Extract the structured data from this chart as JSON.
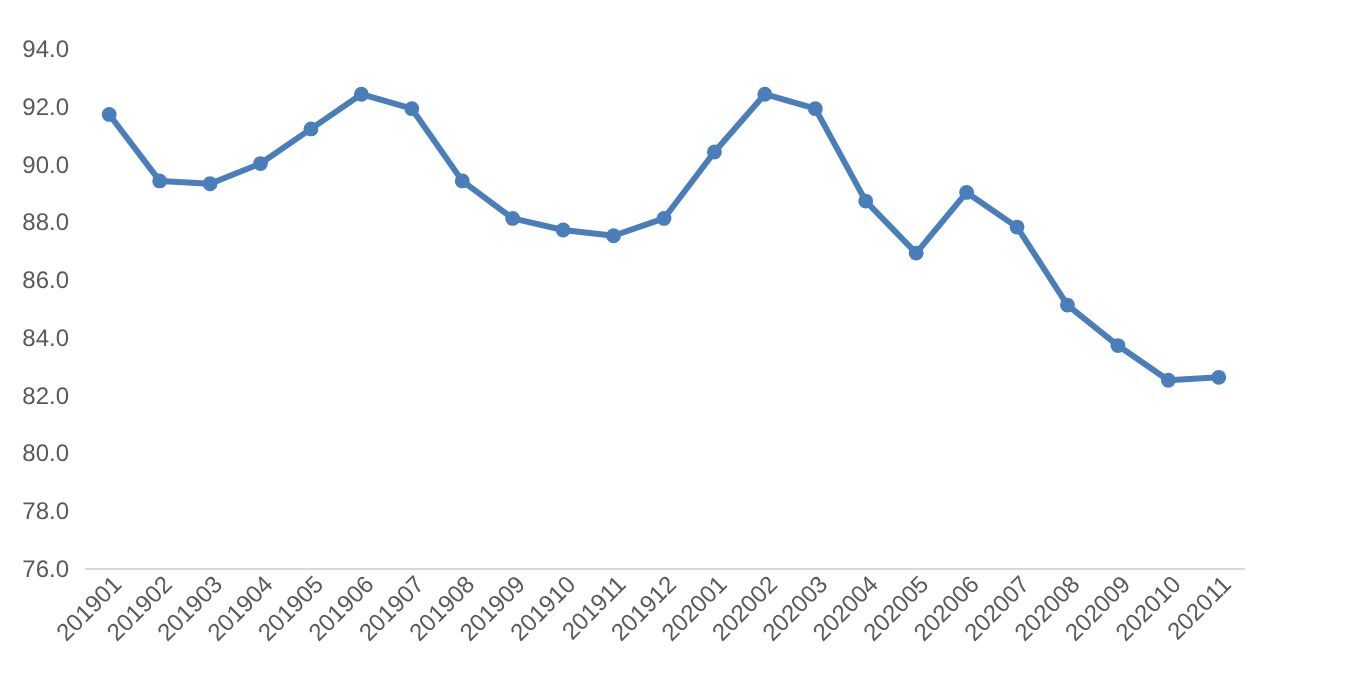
{
  "chart_data": {
    "type": "line",
    "categories": [
      "201901",
      "201902",
      "201903",
      "201904",
      "201905",
      "201906",
      "201907",
      "201908",
      "201909",
      "201910",
      "201911",
      "201912",
      "202001",
      "202002",
      "202003",
      "202004",
      "202005",
      "202006",
      "202007",
      "202008",
      "202009",
      "202010",
      "202011"
    ],
    "series": [
      {
        "color": "#4a7ebb",
        "values": [
          91.7,
          89.4,
          89.3,
          90.0,
          91.2,
          92.4,
          91.9,
          89.4,
          88.1,
          87.7,
          87.5,
          88.1,
          90.4,
          92.4,
          91.9,
          88.7,
          86.9,
          89.0,
          87.8,
          85.1,
          83.7,
          82.5,
          82.6
        ]
      }
    ],
    "ylim": [
      76,
      94
    ],
    "yticks": [
      {
        "value": 76,
        "label": "76.0"
      },
      {
        "value": 78,
        "label": "78.0"
      },
      {
        "value": 80,
        "label": "80.0"
      },
      {
        "value": 82,
        "label": "82.0"
      },
      {
        "value": 84,
        "label": "84.0"
      },
      {
        "value": 86,
        "label": "86.0"
      },
      {
        "value": 88,
        "label": "88.0"
      },
      {
        "value": 90,
        "label": "90.0"
      },
      {
        "value": 92,
        "label": "92.0"
      },
      {
        "value": 94,
        "label": "94.0"
      }
    ],
    "grid": false,
    "legend": false,
    "marker": "circle",
    "line_style": "solid"
  }
}
